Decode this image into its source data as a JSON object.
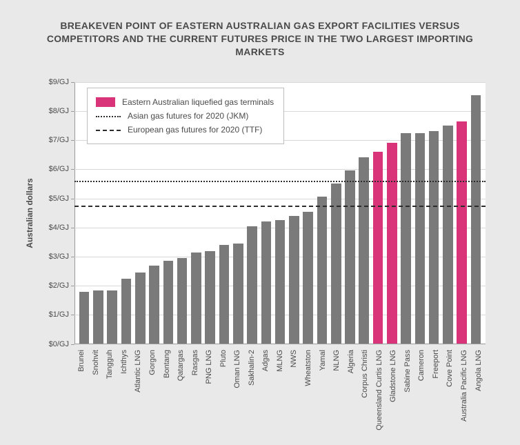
{
  "title_line1": "BREAKEVEN POINT OF EASTERN AUSTRALIAN GAS EXPORT FACILITIES VERSUS",
  "title_line2": "COMPETITORS AND THE CURRENT FUTURES PRICE IN THE TWO LARGEST IMPORTING MARKETS",
  "title_fontsize": 14,
  "chart": {
    "type": "bar",
    "background_color": "#ffffff",
    "page_background": "#e9e9e9",
    "bar_default_color": "#7a7a7a",
    "bar_highlight_color": "#d9337a",
    "grid_color": "#d8d8d8",
    "axis_color": "#9a9a9a",
    "text_color": "#4a4a4a",
    "ylabel": "Australian dollars",
    "ylabel_fontsize": 12,
    "ylim": [
      0,
      9
    ],
    "ytick_step": 1,
    "ytick_prefix": "$",
    "ytick_suffix": "/GJ",
    "ytick_fontsize": 11,
    "xtick_fontsize": 11,
    "bar_width_ratio": 0.72,
    "legend": {
      "fontsize": 12,
      "border_color": "#bdbdbd",
      "items": [
        {
          "type": "swatch",
          "color": "#d9337a",
          "label": "Eastern Australian liquefied gas terminals"
        },
        {
          "type": "dotted",
          "color": "#2b2b2b",
          "label": "Asian gas futures for 2020 (JKM)"
        },
        {
          "type": "dashed",
          "color": "#2b2b2b",
          "label": "European gas futures for 2020 (TTF)"
        }
      ]
    },
    "reference_lines": [
      {
        "name": "jkm",
        "value": 5.6,
        "style": "dotted",
        "color": "#2b2b2b",
        "width": 2
      },
      {
        "name": "ttf",
        "value": 4.75,
        "style": "dashed",
        "color": "#2b2b2b",
        "width": 2
      }
    ],
    "data": [
      {
        "label": "Brunei",
        "value": 1.8,
        "highlight": false
      },
      {
        "label": "Snohvit",
        "value": 1.85,
        "highlight": false
      },
      {
        "label": "Tangguh",
        "value": 1.85,
        "highlight": false
      },
      {
        "label": "Ichthys",
        "value": 2.25,
        "highlight": false
      },
      {
        "label": "Atlantic LNG",
        "value": 2.45,
        "highlight": false
      },
      {
        "label": "Gorgon",
        "value": 2.7,
        "highlight": false
      },
      {
        "label": "Bontang",
        "value": 2.85,
        "highlight": false
      },
      {
        "label": "Qatargas",
        "value": 2.95,
        "highlight": false
      },
      {
        "label": "Rasgas",
        "value": 3.15,
        "highlight": false
      },
      {
        "label": "PNG LNG",
        "value": 3.2,
        "highlight": false
      },
      {
        "label": "Pluto",
        "value": 3.4,
        "highlight": false
      },
      {
        "label": "Oman LNG",
        "value": 3.45,
        "highlight": false
      },
      {
        "label": "Sakhalin-2",
        "value": 4.05,
        "highlight": false
      },
      {
        "label": "Adgas",
        "value": 4.2,
        "highlight": false
      },
      {
        "label": "MLNG",
        "value": 4.25,
        "highlight": false
      },
      {
        "label": "NWS",
        "value": 4.4,
        "highlight": false
      },
      {
        "label": "Wheatston",
        "value": 4.55,
        "highlight": false
      },
      {
        "label": "Yamal",
        "value": 5.05,
        "highlight": false
      },
      {
        "label": "NLNG",
        "value": 5.5,
        "highlight": false
      },
      {
        "label": "Algeria",
        "value": 5.95,
        "highlight": false
      },
      {
        "label": "Corpus Christi",
        "value": 6.4,
        "highlight": false
      },
      {
        "label": "Queensland Curtis LNG",
        "value": 6.6,
        "highlight": true
      },
      {
        "label": "Gladstone LNG",
        "value": 6.9,
        "highlight": true
      },
      {
        "label": "Sabine Pass",
        "value": 7.25,
        "highlight": false
      },
      {
        "label": "Cameron",
        "value": 7.25,
        "highlight": false
      },
      {
        "label": "Freeport",
        "value": 7.3,
        "highlight": false
      },
      {
        "label": "Cove Point",
        "value": 7.5,
        "highlight": false
      },
      {
        "label": "Australia Pacific LNG",
        "value": 7.65,
        "highlight": true
      },
      {
        "label": "Angola LNG",
        "value": 8.55,
        "highlight": false
      }
    ]
  }
}
